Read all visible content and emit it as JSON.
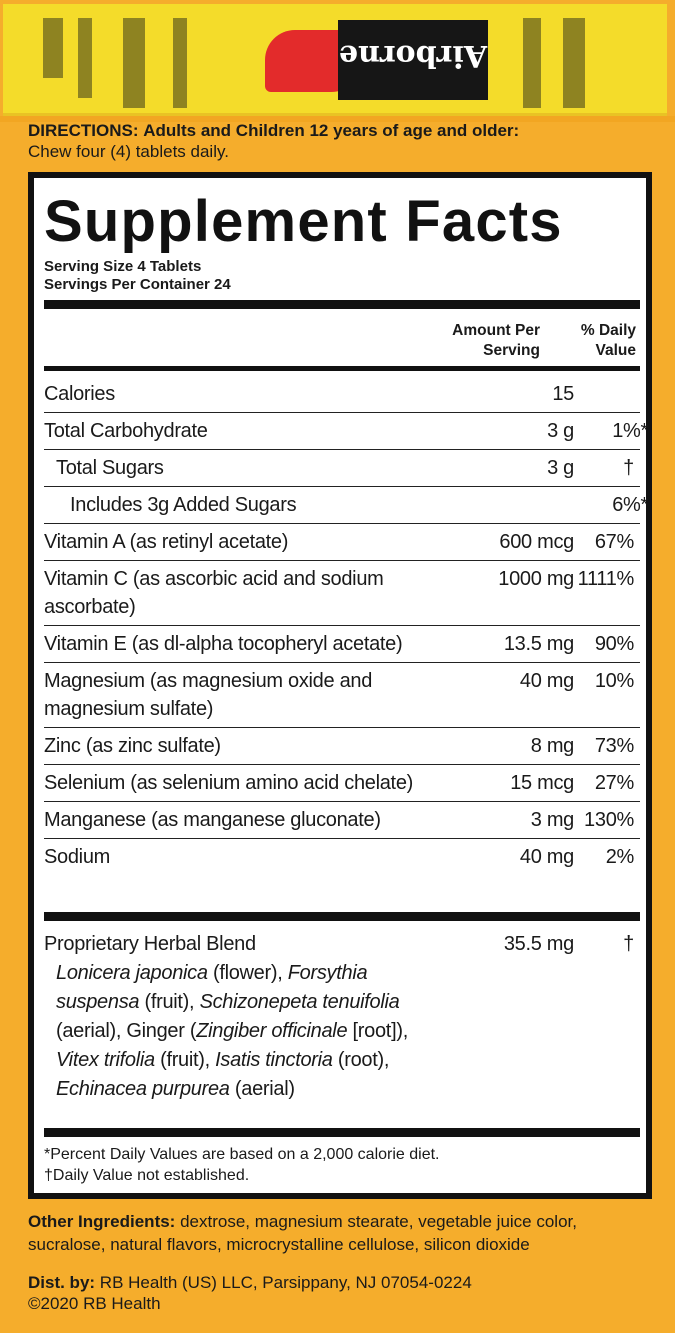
{
  "brand": {
    "logo_text": "Airborne"
  },
  "directions": {
    "label": "DIRECTIONS:",
    "text": "Adults and Children 12 years of age and older:",
    "line2": "Chew four (4) tablets daily."
  },
  "facts": {
    "title": "Supplement Facts",
    "serving_size": "Serving Size 4 Tablets",
    "servings_per_container": "Servings Per Container 24",
    "col_amount": [
      "Amount Per",
      "Serving"
    ],
    "col_dv": [
      "% Daily",
      "Value"
    ],
    "rows": [
      {
        "name": "Calories",
        "amount": "15",
        "dv": "",
        "indent": 0
      },
      {
        "name": "Total Carbohydrate",
        "amount": "3 g",
        "dv": "1%*",
        "indent": 0
      },
      {
        "name": "Total Sugars",
        "amount": "3 g",
        "dv": "†",
        "indent": 1
      },
      {
        "name": "Includes 3g Added Sugars",
        "amount": "",
        "dv": "6%*",
        "indent": 2
      },
      {
        "name": "Vitamin A (as retinyl acetate)",
        "amount": "600 mcg",
        "dv": "67%",
        "indent": 0
      },
      {
        "name": "Vitamin C (as ascorbic acid and sodium ascorbate)",
        "amount": "1000 mg",
        "dv": "1111%",
        "indent": 0
      },
      {
        "name": "Vitamin E (as dl-alpha tocopheryl acetate)",
        "amount": "13.5 mg",
        "dv": "90%",
        "indent": 0
      },
      {
        "name": "Magnesium (as magnesium oxide and magnesium sulfate)",
        "amount": "40 mg",
        "dv": "10%",
        "indent": 0
      },
      {
        "name": "Zinc (as zinc sulfate)",
        "amount": "8 mg",
        "dv": "73%",
        "indent": 0
      },
      {
        "name": "Selenium (as selenium amino acid chelate)",
        "amount": "15 mcg",
        "dv": "27%",
        "indent": 0
      },
      {
        "name": "Manganese (as manganese gluconate)",
        "amount": "3 mg",
        "dv": "130%",
        "indent": 0
      },
      {
        "name": "Sodium",
        "amount": "40 mg",
        "dv": "2%",
        "indent": 0
      }
    ],
    "blend": {
      "name": "Proprietary Herbal Blend",
      "amount": "35.5 mg",
      "dv": "†",
      "ingredients": [
        {
          "latin": "Lonicera japonica",
          "part": "(flower)"
        },
        {
          "latin": "Forsythia suspensa",
          "part": "(fruit)"
        },
        {
          "latin": "Schizonepeta tenuifolia",
          "part": "(aerial)"
        },
        {
          "prefix": "Ginger (",
          "latin": "Zingiber officinale",
          "part": "[root])"
        },
        {
          "latin": "Vitex trifolia",
          "part": "(fruit)"
        },
        {
          "latin": "Isatis tinctoria",
          "part": "(root)"
        },
        {
          "latin": "Echinacea purpurea",
          "part": "(aerial)"
        }
      ]
    },
    "footnote1": "*Percent Daily Values are based on a 2,000 calorie diet.",
    "footnote2": "†Daily Value not established."
  },
  "other_ingredients": {
    "label": "Other Ingredients:",
    "text": "dextrose, magnesium stearate, vegetable juice color, sucralose, natural flavors, microcrystalline cellulose, silicon dioxide"
  },
  "distributor": {
    "label": "Dist. by:",
    "text": "RB Health (US) LLC, Parsippany, NJ 07054-0224",
    "copyright": "©2020 RB Health"
  },
  "colors": {
    "box": "#F5AD2C",
    "flap": "#F4DC2A",
    "logo_bg": "#161616",
    "banner": "#E32B2B"
  }
}
